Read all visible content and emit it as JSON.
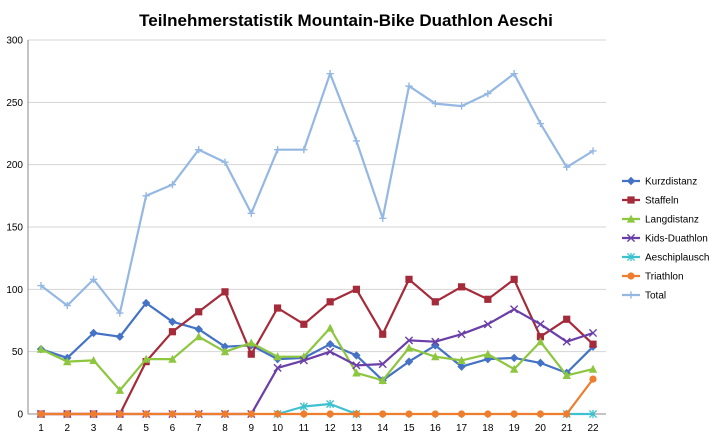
{
  "chart_data": {
    "type": "line",
    "title": "Teilnehmerstatistik Mountain-Bike Duathlon Aeschi",
    "xlabel": "",
    "ylabel": "",
    "x": [
      1,
      2,
      3,
      4,
      5,
      6,
      7,
      8,
      9,
      10,
      11,
      12,
      13,
      14,
      15,
      16,
      17,
      18,
      19,
      20,
      21,
      22
    ],
    "ylim": [
      0,
      300
    ],
    "yticks": [
      0,
      50,
      100,
      150,
      200,
      250,
      300
    ],
    "grid": "horizontal",
    "legend_position": "right",
    "series": [
      {
        "name": "Kurzdistanz",
        "color": "#4472C4",
        "marker": "diamond",
        "values": [
          52,
          45,
          65,
          62,
          89,
          74,
          68,
          54,
          55,
          44,
          45,
          56,
          47,
          27,
          42,
          55,
          38,
          44,
          45,
          41,
          33,
          54
        ]
      },
      {
        "name": "Staffeln",
        "color": "#A52A3A",
        "marker": "square",
        "values": [
          0,
          0,
          0,
          0,
          42,
          66,
          82,
          98,
          48,
          85,
          72,
          90,
          100,
          64,
          108,
          90,
          102,
          92,
          108,
          62,
          76,
          56
        ]
      },
      {
        "name": "Langdistanz",
        "color": "#8DC63F",
        "marker": "triangle",
        "values": [
          52,
          42,
          43,
          19,
          44,
          44,
          62,
          50,
          57,
          46,
          46,
          69,
          33,
          27,
          53,
          46,
          43,
          48,
          36,
          58,
          31,
          36
        ]
      },
      {
        "name": "Kids-Duathlon",
        "color": "#6A3FA8",
        "marker": "x",
        "values": [
          0,
          0,
          0,
          0,
          0,
          0,
          0,
          0,
          0,
          37,
          43,
          50,
          39,
          40,
          59,
          58,
          64,
          72,
          84,
          72,
          58,
          65
        ]
      },
      {
        "name": "Aeschiplausch",
        "color": "#3EC1CF",
        "marker": "star",
        "values": [
          null,
          null,
          null,
          null,
          null,
          null,
          null,
          null,
          null,
          0,
          6,
          8,
          0,
          null,
          null,
          null,
          null,
          null,
          null,
          null,
          0,
          0
        ]
      },
      {
        "name": "Triathlon",
        "color": "#EE7D2E",
        "marker": "circle",
        "values": [
          0,
          0,
          0,
          0,
          0,
          0,
          0,
          0,
          0,
          0,
          0,
          0,
          0,
          0,
          0,
          0,
          0,
          0,
          0,
          0,
          0,
          28
        ]
      },
      {
        "name": "Total",
        "color": "#95B8E3",
        "marker": "plus",
        "values": [
          103,
          87,
          108,
          81,
          175,
          184,
          212,
          202,
          161,
          212,
          212,
          273,
          219,
          157,
          263,
          249,
          247,
          257,
          273,
          233,
          198,
          211
        ]
      }
    ]
  }
}
